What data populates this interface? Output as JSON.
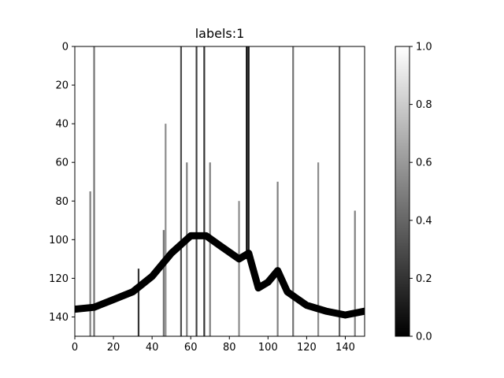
{
  "chart_data": {
    "type": "heatmap",
    "title": "labels:1",
    "xlabel": "",
    "ylabel": "",
    "colormap": "gray",
    "grid": false,
    "x_range": [
      0,
      150
    ],
    "y_range": [
      0,
      150
    ],
    "y_inverted": true,
    "x_ticks": [
      "0",
      "20",
      "40",
      "60",
      "80",
      "100",
      "120",
      "140"
    ],
    "y_ticks": [
      "0",
      "20",
      "40",
      "60",
      "80",
      "100",
      "120",
      "140"
    ],
    "colorbar": {
      "range": [
        0.0,
        1.0
      ],
      "ticks": [
        "0.0",
        "0.2",
        "0.4",
        "0.6",
        "0.8",
        "1.0"
      ]
    },
    "band_centerline": [
      {
        "x": 0,
        "y": 136
      },
      {
        "x": 10,
        "y": 135
      },
      {
        "x": 20,
        "y": 131
      },
      {
        "x": 30,
        "y": 127
      },
      {
        "x": 40,
        "y": 119
      },
      {
        "x": 50,
        "y": 107
      },
      {
        "x": 60,
        "y": 98
      },
      {
        "x": 68,
        "y": 98
      },
      {
        "x": 75,
        "y": 103
      },
      {
        "x": 85,
        "y": 110
      },
      {
        "x": 90,
        "y": 107
      },
      {
        "x": 95,
        "y": 125
      },
      {
        "x": 100,
        "y": 122
      },
      {
        "x": 105,
        "y": 116
      },
      {
        "x": 110,
        "y": 127
      },
      {
        "x": 120,
        "y": 134
      },
      {
        "x": 130,
        "y": 137
      },
      {
        "x": 140,
        "y": 139
      },
      {
        "x": 150,
        "y": 137
      }
    ],
    "vertical_streaks": [
      {
        "x": 10,
        "y_start": 0,
        "y_end": 150,
        "value": 0.45
      },
      {
        "x": 55,
        "y_start": 0,
        "y_end": 150,
        "value": 0.3
      },
      {
        "x": 63,
        "y_start": 0,
        "y_end": 150,
        "value": 0.25
      },
      {
        "x": 67,
        "y_start": 0,
        "y_end": 150,
        "value": 0.2
      },
      {
        "x": 113,
        "y_start": 0,
        "y_end": 150,
        "value": 0.45
      },
      {
        "x": 137,
        "y_start": 0,
        "y_end": 150,
        "value": 0.4
      },
      {
        "x": 8,
        "y_start": 75,
        "y_end": 150,
        "value": 0.5
      },
      {
        "x": 46,
        "y_start": 95,
        "y_end": 150,
        "value": 0.45
      },
      {
        "x": 47,
        "y_start": 40,
        "y_end": 150,
        "value": 0.55
      },
      {
        "x": 58,
        "y_start": 60,
        "y_end": 150,
        "value": 0.5
      },
      {
        "x": 70,
        "y_start": 60,
        "y_end": 150,
        "value": 0.5
      },
      {
        "x": 85,
        "y_start": 80,
        "y_end": 150,
        "value": 0.55
      },
      {
        "x": 105,
        "y_start": 70,
        "y_end": 150,
        "value": 0.5
      },
      {
        "x": 126,
        "y_start": 60,
        "y_end": 150,
        "value": 0.55
      },
      {
        "x": 145,
        "y_start": 85,
        "y_end": 150,
        "value": 0.5
      },
      {
        "x": 33,
        "y_start": 115,
        "y_end": 150,
        "value": 0.2
      },
      {
        "x": 89,
        "y_start": 0,
        "y_end": 110,
        "value": 0.0
      },
      {
        "x": 90,
        "y_start": 0,
        "y_end": 110,
        "value": 0.1
      }
    ]
  }
}
